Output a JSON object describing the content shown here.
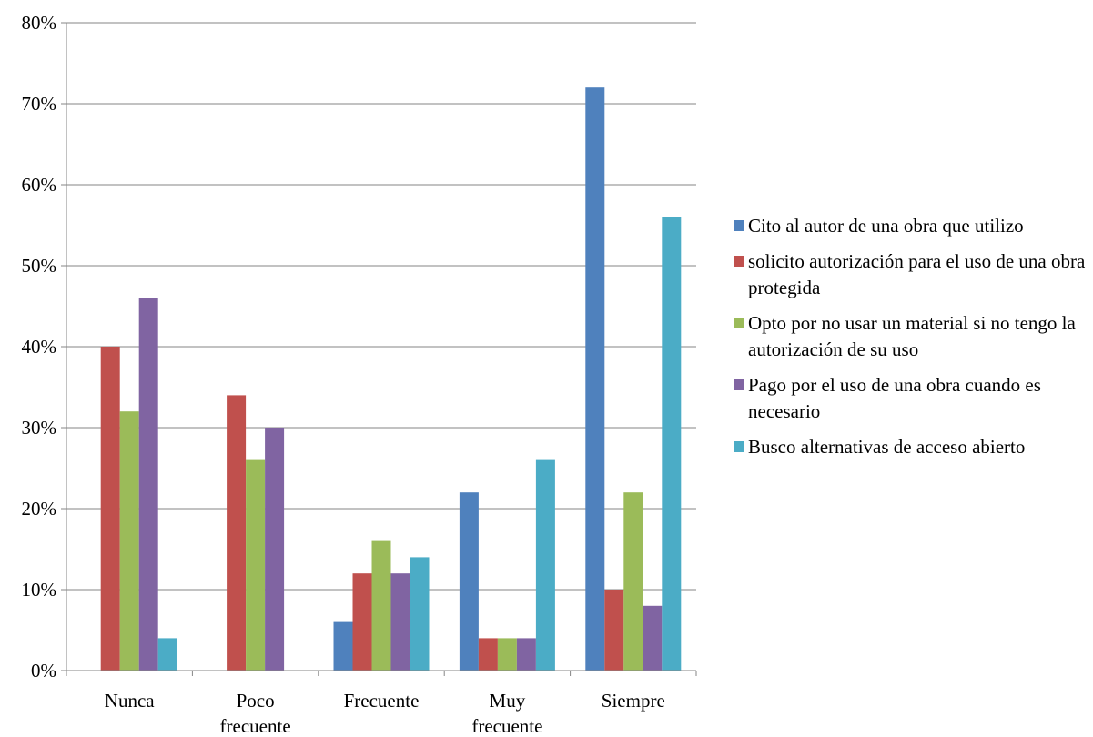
{
  "chart_data": {
    "type": "bar",
    "categories": [
      [
        "Nunca"
      ],
      [
        "Poco",
        "frecuente"
      ],
      [
        "Frecuente"
      ],
      [
        "Muy",
        "frecuente"
      ],
      [
        "Siempre"
      ]
    ],
    "y_ticks": [
      "0%",
      "10%",
      "20%",
      "30%",
      "40%",
      "50%",
      "60%",
      "70%",
      "80%"
    ],
    "ylim": [
      0,
      80
    ],
    "grid": true,
    "legend_position": "right",
    "series": [
      {
        "name": "Cito al autor de una obra que utilizo",
        "color": "#4f81bd",
        "values": [
          0,
          0,
          6,
          22,
          72
        ]
      },
      {
        "name": "solicito autorización para el uso de una obra protegida",
        "color": "#c0504d",
        "values": [
          40,
          34,
          12,
          4,
          10
        ]
      },
      {
        "name": "Opto por no usar un material si no tengo la autorización de su uso",
        "color": "#9bbb59",
        "values": [
          32,
          26,
          16,
          4,
          22
        ]
      },
      {
        "name": "Pago por el uso de una obra cuando es necesario",
        "color": "#8064a2",
        "values": [
          46,
          30,
          12,
          4,
          8
        ]
      },
      {
        "name": "Busco alternativas de acceso abierto",
        "color": "#4bacc6",
        "values": [
          4,
          0,
          14,
          26,
          56
        ]
      }
    ]
  }
}
